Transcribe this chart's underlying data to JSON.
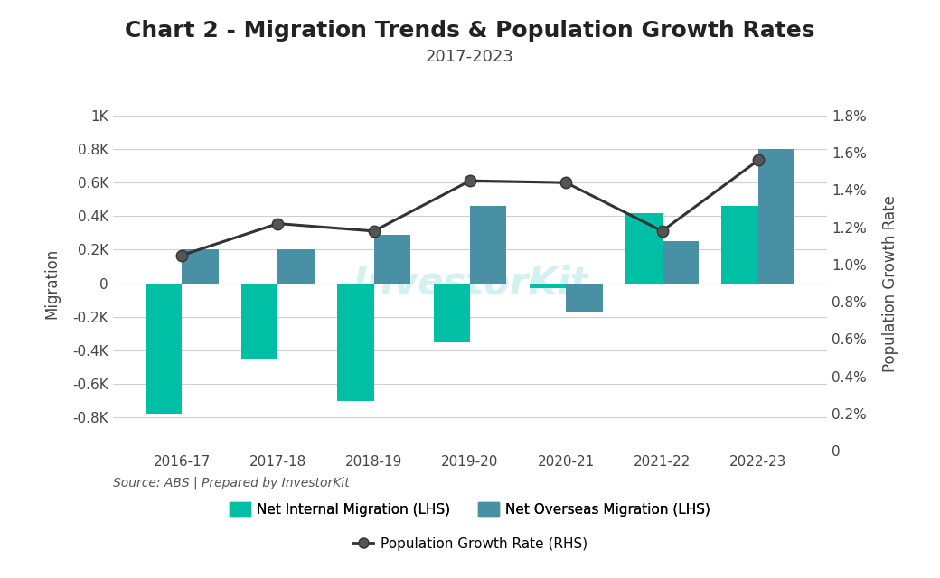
{
  "title": "Chart 2 - Migration Trends & Population Growth Rates",
  "subtitle": "2017-2023",
  "source": "Source: ABS | Prepared by InvestorKit",
  "categories": [
    "2016-17",
    "2017-18",
    "2018-19",
    "2019-20",
    "2020-21",
    "2021-22",
    "2022-23"
  ],
  "net_internal_migration": [
    -780,
    -450,
    -700,
    -350,
    -30,
    420,
    460
  ],
  "net_overseas_migration": [
    200,
    200,
    290,
    460,
    -170,
    250,
    800
  ],
  "population_growth_rate": [
    1.05,
    1.22,
    1.18,
    1.45,
    1.44,
    1.18,
    1.56
  ],
  "bar_width": 0.38,
  "internal_color": "#00BFA5",
  "overseas_color": "#4A90A4",
  "line_color": "#333333",
  "marker_color": "#555555",
  "ylim_left": [
    -1000,
    1000
  ],
  "ylim_right": [
    0,
    1.8
  ],
  "yticks_left": [
    -800,
    -600,
    -400,
    -200,
    0,
    200,
    400,
    600,
    800,
    1000
  ],
  "ytick_labels_left": [
    "-0.8K",
    "-0.6K",
    "-0.4K",
    "-0.2K",
    "0",
    "0.2K",
    "0.4K",
    "0.6K",
    "0.8K",
    "1K"
  ],
  "yticks_right": [
    0,
    0.2,
    0.4,
    0.6,
    0.8,
    1.0,
    1.2,
    1.4,
    1.6,
    1.8
  ],
  "ytick_labels_right": [
    "0",
    "0.2%",
    "0.4%",
    "0.6%",
    "0.8%",
    "1.0%",
    "1.2%",
    "1.4%",
    "1.6%",
    "1.8%"
  ],
  "watermark": "InvestorKit",
  "background_color": "#ffffff",
  "grid_color": "#d0d0d0",
  "title_fontsize": 18,
  "subtitle_fontsize": 13,
  "tick_fontsize": 11,
  "label_fontsize": 12,
  "legend_fontsize": 11,
  "source_fontsize": 10
}
